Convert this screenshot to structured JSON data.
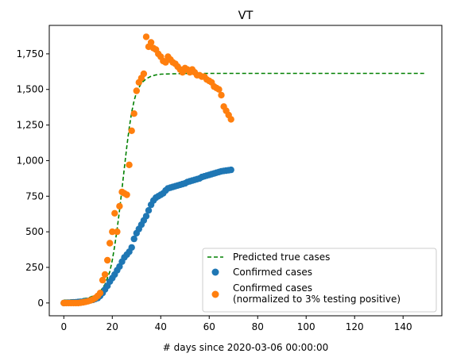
{
  "chart_data": {
    "type": "scatter",
    "title": "VT",
    "xlabel": "# days since 2020-03-06 00:00:00",
    "ylabel": "",
    "xlim": [
      -6,
      156
    ],
    "ylim": [
      -90,
      1950
    ],
    "x_ticks": [
      0,
      20,
      40,
      60,
      80,
      100,
      120,
      140
    ],
    "x_tick_labels": [
      "0",
      "20",
      "40",
      "60",
      "80",
      "100",
      "120",
      "140"
    ],
    "y_ticks": [
      0,
      250,
      500,
      750,
      1000,
      1250,
      1500,
      1750
    ],
    "y_tick_labels": [
      "0",
      "250",
      "500",
      "750",
      "1,000",
      "1,250",
      "1,500",
      "1,750"
    ],
    "grid": false,
    "legend_position": "lower-right",
    "series": [
      {
        "name": "Predicted true cases",
        "kind": "line",
        "style": "dashed",
        "color": "#008000",
        "x": [
          0,
          5,
          10,
          13,
          15,
          17,
          19,
          20,
          21,
          22,
          23,
          24,
          25,
          26,
          27,
          28,
          29,
          30,
          32,
          34,
          36,
          38,
          40,
          45,
          50,
          60,
          80,
          100,
          120,
          149
        ],
        "y": [
          20,
          22,
          35,
          55,
          80,
          130,
          220,
          300,
          400,
          520,
          650,
          800,
          950,
          1100,
          1230,
          1340,
          1420,
          1480,
          1545,
          1575,
          1593,
          1602,
          1607,
          1610,
          1612,
          1613,
          1613,
          1613,
          1613,
          1613
        ]
      },
      {
        "name": "Confirmed cases",
        "kind": "scatter",
        "color": "#1f77b4",
        "x": [
          0,
          1,
          2,
          3,
          4,
          5,
          6,
          7,
          8,
          9,
          10,
          11,
          12,
          13,
          14,
          15,
          16,
          17,
          18,
          19,
          20,
          21,
          22,
          23,
          24,
          25,
          26,
          27,
          28,
          29,
          30,
          31,
          32,
          33,
          34,
          35,
          36,
          37,
          38,
          39,
          40,
          41,
          42,
          43,
          44,
          45,
          46,
          47,
          48,
          49,
          50,
          51,
          52,
          53,
          54,
          55,
          56,
          57,
          58,
          59,
          60,
          61,
          62,
          63,
          64,
          65,
          66,
          67,
          68,
          69
        ],
        "y": [
          0,
          1,
          2,
          3,
          4,
          5,
          7,
          8,
          10,
          12,
          15,
          18,
          22,
          28,
          35,
          50,
          70,
          95,
          120,
          150,
          175,
          200,
          230,
          256,
          290,
          320,
          340,
          360,
          390,
          450,
          490,
          520,
          550,
          580,
          610,
          650,
          690,
          720,
          740,
          750,
          760,
          770,
          790,
          805,
          810,
          815,
          820,
          825,
          830,
          835,
          840,
          850,
          855,
          860,
          865,
          870,
          875,
          885,
          890,
          895,
          900,
          905,
          910,
          915,
          920,
          925,
          928,
          930,
          932,
          935
        ]
      },
      {
        "name": "Confirmed cases\n(normalized to 3% testing positive)",
        "kind": "scatter",
        "color": "#ff7f0e",
        "x": [
          0,
          1,
          2,
          3,
          4,
          5,
          6,
          7,
          8,
          9,
          10,
          11,
          12,
          13,
          14,
          15,
          16,
          17,
          18,
          19,
          20,
          21,
          22,
          23,
          24,
          25,
          26,
          27,
          28,
          29,
          30,
          31,
          32,
          33,
          34,
          35,
          36,
          37,
          38,
          39,
          40,
          41,
          42,
          43,
          44,
          45,
          46,
          47,
          48,
          49,
          50,
          51,
          52,
          53,
          54,
          55,
          56,
          57,
          58,
          59,
          60,
          61,
          62,
          63,
          64,
          65,
          66,
          67,
          68,
          69
        ],
        "y": [
          0,
          0,
          0,
          0,
          0,
          0,
          0,
          2,
          5,
          8,
          12,
          18,
          25,
          35,
          50,
          70,
          160,
          200,
          300,
          420,
          500,
          630,
          500,
          680,
          780,
          770,
          760,
          970,
          1210,
          1330,
          1490,
          1550,
          1580,
          1610,
          1870,
          1800,
          1830,
          1790,
          1780,
          1750,
          1730,
          1700,
          1690,
          1730,
          1710,
          1690,
          1680,
          1660,
          1640,
          1620,
          1650,
          1640,
          1620,
          1640,
          1620,
          1600,
          1600,
          1590,
          1590,
          1570,
          1560,
          1550,
          1520,
          1510,
          1500,
          1460,
          1380,
          1350,
          1320,
          1290
        ]
      }
    ]
  }
}
